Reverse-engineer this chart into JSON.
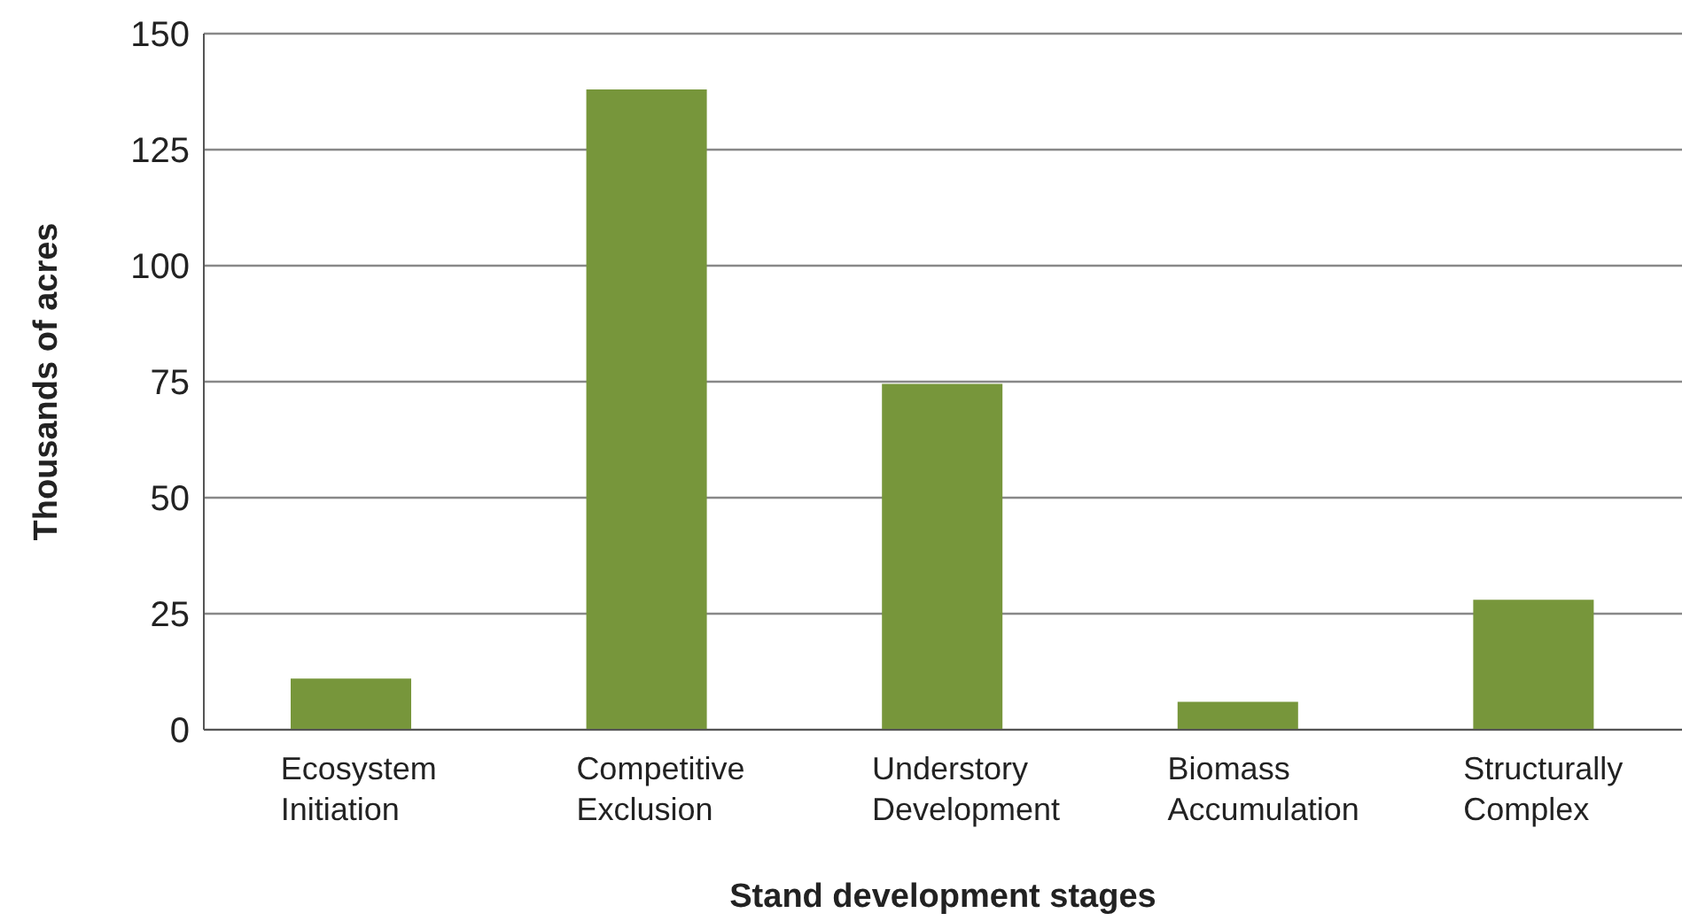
{
  "chart_data": {
    "type": "bar",
    "xlabel": "Stand development stages",
    "ylabel": "Thousands of acres",
    "categories": [
      "Ecosystem Initiation",
      "Competitive Exclusion",
      "Understory Development",
      "Biomass Accumulation",
      "Structurally Complex"
    ],
    "values": [
      11,
      138,
      74.5,
      6,
      28
    ],
    "color": "#77963b",
    "ylim": [
      0,
      150
    ],
    "yticks": [
      0,
      25,
      50,
      75,
      100,
      125,
      150
    ],
    "grid": "y",
    "legend": false
  }
}
